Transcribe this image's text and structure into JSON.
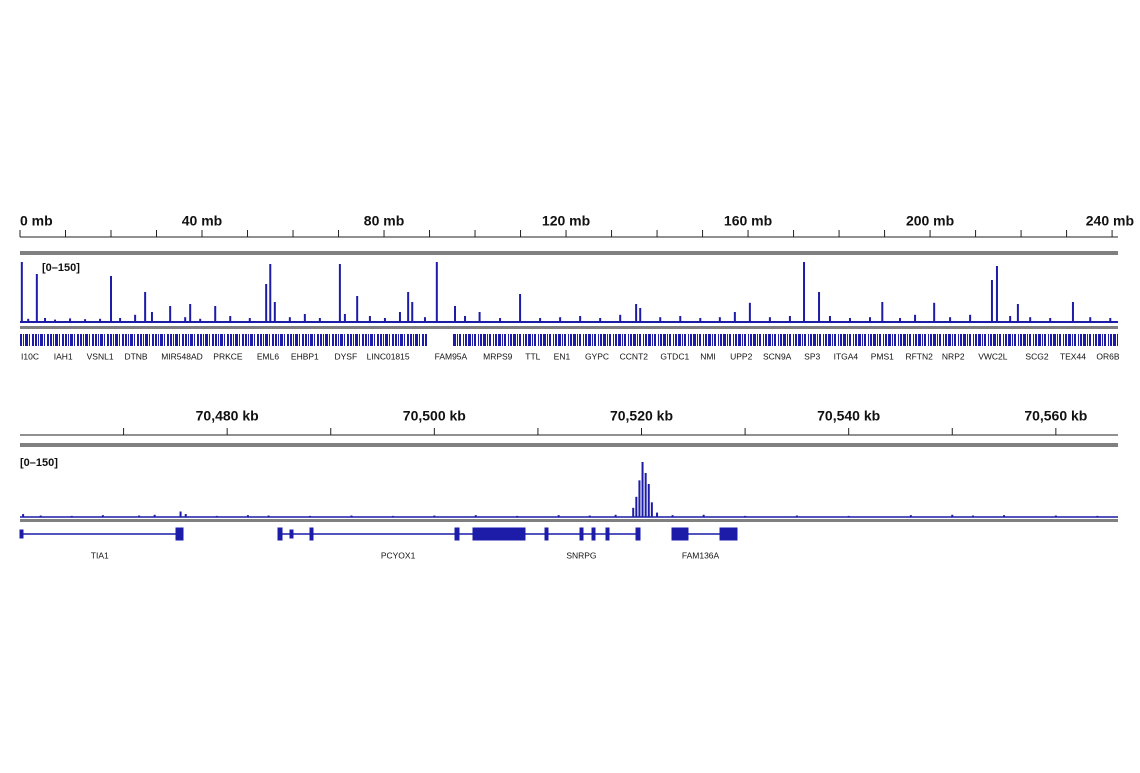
{
  "chart_data": [
    {
      "type": "coverage",
      "range_label": "[0–150]",
      "color": "#1c1ca8",
      "xlim": [
        0,
        241.3
      ],
      "ylim": [
        0,
        150
      ],
      "xticks": [
        {
          "value": 0,
          "label": "0 mb"
        },
        {
          "value": 40,
          "label": "40 mb"
        },
        {
          "value": 80,
          "label": "80 mb"
        },
        {
          "value": 120,
          "label": "120 mb"
        },
        {
          "value": 160,
          "label": "160 mb"
        },
        {
          "value": 200,
          "label": "200 mb"
        },
        {
          "value": 240,
          "label": "240 mb"
        }
      ],
      "xminor_ticks": [
        10,
        20,
        30,
        50,
        60,
        70,
        90,
        100,
        110,
        130,
        140,
        150,
        170,
        180,
        190,
        210,
        220,
        230
      ],
      "x": [
        0.4,
        1.8,
        3.7,
        5.5,
        7.7,
        11,
        14.3,
        17.6,
        20,
        22,
        25.3,
        27.5,
        29,
        33,
        36.3,
        37.4,
        39.6,
        42.9,
        46.2,
        50.5,
        54.1,
        55,
        56,
        59.3,
        62.6,
        65.9,
        70.3,
        71.4,
        74.1,
        76.9,
        80.2,
        83.5,
        85.3,
        86.2,
        89,
        91.6,
        95.6,
        97.8,
        101,
        105.5,
        109.9,
        114.3,
        118.7,
        123.1,
        127.5,
        131.9,
        135.4,
        136.3,
        140.7,
        145.1,
        149.5,
        153.8,
        157.1,
        160.4,
        164.8,
        169.2,
        172.3,
        175.6,
        178,
        182.4,
        186.8,
        189.5,
        193.4,
        196.7,
        200.9,
        204.4,
        208.8,
        213.6,
        214.7,
        217.6,
        219.3,
        222,
        226.4,
        231.4,
        235.2,
        239.6
      ],
      "values": [
        150,
        8,
        120,
        10,
        6,
        9,
        7,
        8,
        115,
        10,
        18,
        75,
        25,
        40,
        12,
        45,
        8,
        40,
        15,
        10,
        95,
        145,
        50,
        12,
        20,
        10,
        145,
        20,
        65,
        15,
        10,
        25,
        75,
        50,
        12,
        150,
        40,
        15,
        25,
        10,
        70,
        10,
        12,
        15,
        10,
        18,
        45,
        35,
        12,
        15,
        10,
        12,
        25,
        48,
        12,
        15,
        150,
        75,
        15,
        10,
        12,
        50,
        10,
        18,
        48,
        12,
        18,
        105,
        140,
        15,
        45,
        12,
        10,
        50,
        12,
        10
      ],
      "genes": [
        {
          "name": "I10C",
          "position": 2.2
        },
        {
          "name": "IAH1",
          "position": 9.5
        },
        {
          "name": "VSNL1",
          "position": 17.6
        },
        {
          "name": "DTNB",
          "position": 25.5
        },
        {
          "name": "MIR548AD",
          "position": 35.6
        },
        {
          "name": "PRKCE",
          "position": 45.7
        },
        {
          "name": "EML6",
          "position": 54.5
        },
        {
          "name": "EHBP1",
          "position": 62.6
        },
        {
          "name": "DYSF",
          "position": 71.6
        },
        {
          "name": "LINC01815",
          "position": 80.9
        },
        {
          "name": "FAM95A",
          "position": 94.7
        },
        {
          "name": "MRPS9",
          "position": 105
        },
        {
          "name": "TTL",
          "position": 112.7
        },
        {
          "name": "EN1",
          "position": 119.1
        },
        {
          "name": "GYPC",
          "position": 126.8
        },
        {
          "name": "CCNT2",
          "position": 134.9
        },
        {
          "name": "GTDC1",
          "position": 143.9
        },
        {
          "name": "NMI",
          "position": 151.2
        },
        {
          "name": "UPP2",
          "position": 158.5
        },
        {
          "name": "SCN9A",
          "position": 166.4
        },
        {
          "name": "SP3",
          "position": 174.1
        },
        {
          "name": "ITGA4",
          "position": 181.5
        },
        {
          "name": "PMS1",
          "position": 189.5
        },
        {
          "name": "RFTN2",
          "position": 197.6
        },
        {
          "name": "NRP2",
          "position": 205.1
        },
        {
          "name": "VWC2L",
          "position": 213.8
        },
        {
          "name": "SCG2",
          "position": 223.5
        },
        {
          "name": "TEX44",
          "position": 231.4
        },
        {
          "name": "OR6B",
          "position": 239.1
        }
      ]
    },
    {
      "type": "coverage",
      "range_label": "[0–150]",
      "color": "#1c1ca8",
      "xlim": [
        70460,
        70566
      ],
      "ylim": [
        0,
        150
      ],
      "xticks": [
        {
          "value": 70480,
          "label": "70,480 kb"
        },
        {
          "value": 70500,
          "label": "70,500 kb"
        },
        {
          "value": 70520,
          "label": "70,520 kb"
        },
        {
          "value": 70540,
          "label": "70,540 kb"
        },
        {
          "value": 70560,
          "label": "70,560 kb"
        }
      ],
      "xminor_ticks": [
        70470,
        70490,
        70510,
        70530,
        70550
      ],
      "x": [
        70460.3,
        70462,
        70465,
        70468,
        70471.5,
        70473,
        70475.5,
        70476,
        70479,
        70482,
        70484,
        70488,
        70492,
        70496,
        70500,
        70504,
        70508,
        70512,
        70515,
        70517.5,
        70519.2,
        70519.5,
        70519.8,
        70520.1,
        70520.4,
        70520.7,
        70521,
        70521.5,
        70523,
        70526,
        70530,
        70535,
        70540,
        70546,
        70550,
        70552,
        70555,
        70560,
        70564
      ],
      "values": [
        8,
        4,
        3,
        5,
        4,
        6,
        15,
        8,
        3,
        5,
        4,
        3,
        4,
        3,
        4,
        5,
        3,
        5,
        4,
        6,
        25,
        55,
        100,
        150,
        120,
        90,
        40,
        12,
        5,
        6,
        3,
        4,
        3,
        5,
        6,
        4,
        5,
        4,
        3
      ],
      "genes": [
        {
          "name": "TIA1",
          "position": 70467.7
        },
        {
          "name": "PCYOX1",
          "position": 70496.5
        },
        {
          "name": "SNRPG",
          "position": 70514.2
        },
        {
          "name": "FAM136A",
          "position": 70525.7
        }
      ]
    }
  ]
}
